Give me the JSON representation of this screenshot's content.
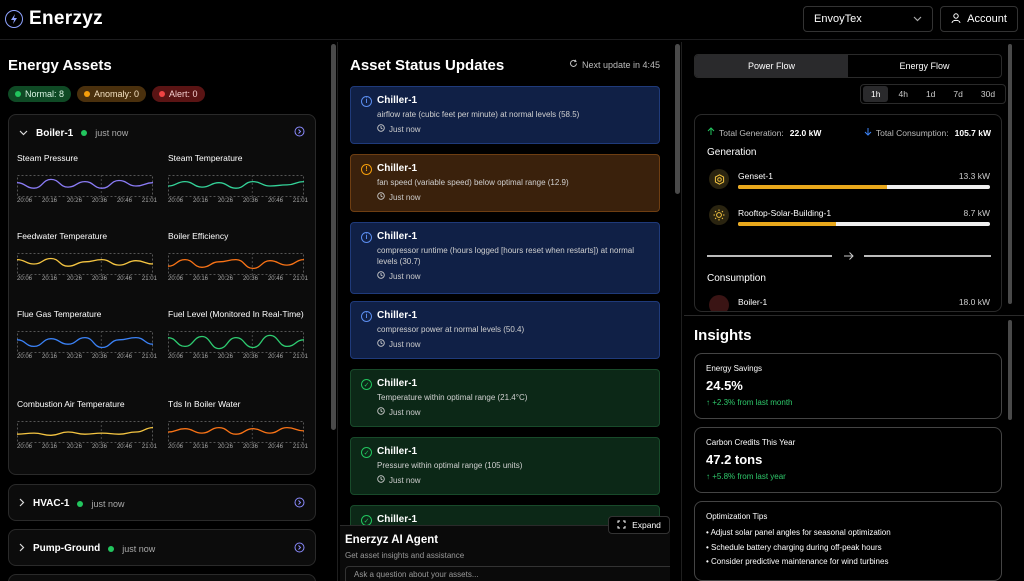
{
  "app": {
    "name": "Enerzyz"
  },
  "header": {
    "org": "EnvoyTex",
    "account_label": "Account"
  },
  "assets": {
    "title": "Energy Assets",
    "badges": [
      {
        "label": "Normal: 8",
        "color": "#22c55e"
      },
      {
        "label": "Anomaly: 0",
        "color": "#f59e0b"
      },
      {
        "label": "Alert: 0",
        "color": "#ef4444"
      }
    ],
    "boiler": {
      "name": "Boiler-1",
      "ago": "just now",
      "charts": [
        {
          "title": "Steam Pressure",
          "ticks": [
            "20:06",
            "20:16",
            "20:26",
            "20:36",
            "20:46",
            "21:01"
          ],
          "color": "#8b7cf6"
        },
        {
          "title": "Steam Temperature",
          "ticks": [
            "20:06",
            "20:16",
            "20:26",
            "20:36",
            "20:46",
            "21:01"
          ],
          "color": "#34d399"
        },
        {
          "title": "Feedwater Temperature",
          "ticks": [
            "20:06",
            "20:16",
            "20:26",
            "20:36",
            "20:46",
            "21:01"
          ],
          "color": "#f5c542"
        },
        {
          "title": "Boiler Efficiency",
          "ticks": [
            "20:06",
            "20:16",
            "20:26",
            "20:36",
            "20:46",
            "21:01"
          ],
          "color": "#f97316"
        },
        {
          "title": "Flue Gas Temperature",
          "ticks": [
            "20:06",
            "20:16",
            "20:26",
            "20:36",
            "20:46",
            "21:01"
          ],
          "color": "#3b82f6"
        },
        {
          "title": "Fuel Level (Monitored In Real-Time)",
          "ticks": [
            "20:06",
            "20:16",
            "20:26",
            "20:36",
            "20:46",
            "21:01"
          ],
          "color": "#2ecc71"
        },
        {
          "title": "Combustion Air Temperature",
          "ticks": [
            "20:06",
            "20:16",
            "20:26",
            "20:36",
            "20:46",
            "21:01"
          ],
          "color": "#f5c542"
        },
        {
          "title": "Tds In Boiler Water",
          "ticks": [
            "20:06",
            "20:16",
            "20:26",
            "20:36",
            "20:46",
            "21:01"
          ],
          "color": "#f97316"
        }
      ]
    },
    "hvac": {
      "name": "HVAC-1",
      "ago": "just now"
    },
    "pump": {
      "name": "Pump-Ground",
      "ago": "just now"
    }
  },
  "updates": {
    "title": "Asset Status Updates",
    "next": "Next update in 4:45",
    "items": [
      {
        "name": "Chiller-1",
        "msg": "airflow rate (cubic feet per minute) at normal levels (58.5)",
        "time": "Just now",
        "kind": "blue"
      },
      {
        "name": "Chiller-1",
        "msg": "fan speed (variable speed) below optimal range (12.9)",
        "time": "Just now",
        "kind": "orange"
      },
      {
        "name": "Chiller-1",
        "msg": "compressor runtime (hours logged [hours reset when restarts]) at normal levels (30.7)",
        "time": "Just now",
        "kind": "blue"
      },
      {
        "name": "Chiller-1",
        "msg": "compressor power at normal levels (50.4)",
        "time": "Just now",
        "kind": "blue"
      },
      {
        "name": "Chiller-1",
        "msg": "Temperature within optimal range (21.4°C)",
        "time": "Just now",
        "kind": "green"
      },
      {
        "name": "Chiller-1",
        "msg": "Pressure within optimal range (105 units)",
        "time": "Just now",
        "kind": "green"
      },
      {
        "name": "Chiller-1",
        "msg": "",
        "time": "",
        "kind": "green"
      }
    ],
    "expand": "Expand"
  },
  "agent": {
    "title": "Enerzyz AI Agent",
    "subtitle": "Get asset insights and assistance",
    "placeholder": "Ask a question about your assets..."
  },
  "flow": {
    "tabs": [
      "Power Flow",
      "Energy Flow"
    ],
    "ranges": [
      "1h",
      "4h",
      "1d",
      "7d",
      "30d"
    ],
    "total_gen_label": "Total Generation:",
    "total_gen": "22.0 kW",
    "total_cons_label": "Total Consumption:",
    "total_cons": "105.7 kW",
    "generation_title": "Generation",
    "generation": [
      {
        "name": "Genset-1",
        "value": "13.3 kW",
        "fill": 0.59
      },
      {
        "name": "Rooftop-Solar-Building-1",
        "value": "8.7 kW",
        "fill": 0.39
      }
    ],
    "consumption_title": "Consumption",
    "consumption": [
      {
        "name": "Boiler-1",
        "value": "18.0 kW"
      }
    ]
  },
  "insights": {
    "title": "Insights",
    "cards": [
      {
        "label": "Energy Savings",
        "value": "24.5%",
        "change": "+2.3% from last month"
      },
      {
        "label": "Carbon Credits This Year",
        "value": "47.2 tons",
        "change": "+5.8% from last year"
      }
    ],
    "tips_title": "Optimization Tips",
    "tips": [
      "• Adjust solar panel angles for seasonal optimization",
      "• Schedule battery charging during off-peak hours",
      "• Consider predictive maintenance for wind turbines"
    ]
  }
}
